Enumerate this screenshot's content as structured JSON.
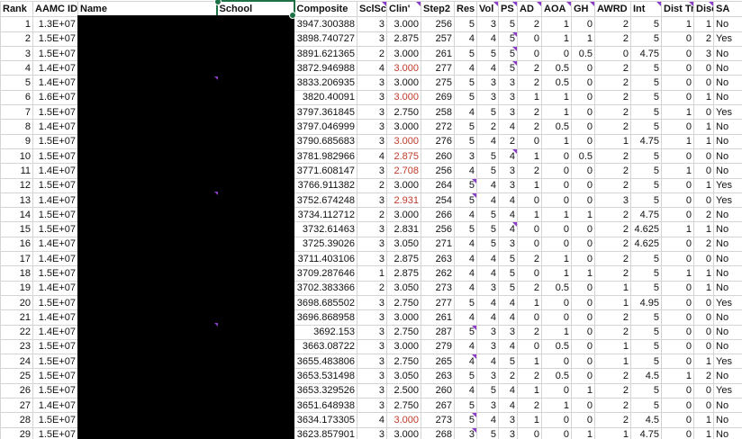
{
  "headers": [
    "Rank",
    "AAMC ID",
    "Name",
    "School",
    "Composite",
    "SclScr",
    "Clin'",
    "Step2",
    "Res",
    "Vol",
    "PS",
    "AD",
    "AOA",
    "GH",
    "AWRD",
    "Int",
    "Dist Tr",
    "Disc",
    "SA"
  ],
  "selected_header": "School",
  "rows": [
    [
      "1",
      "1.3E+07",
      "",
      "",
      "3947.300388",
      "3",
      "3.000",
      "256",
      "5",
      "3",
      "5",
      "2",
      "1",
      "0",
      "2",
      "5",
      "1",
      "1",
      "No"
    ],
    [
      "2",
      "1.5E+07",
      "",
      "",
      "3898.740727",
      "3",
      "2.875",
      "257",
      "4",
      "4",
      "5",
      "0",
      "1",
      "1",
      "2",
      "5",
      "0",
      "2",
      "Yes"
    ],
    [
      "3",
      "1.5E+07",
      "",
      "",
      "3891.621365",
      "2",
      "3.000",
      "261",
      "5",
      "5",
      "5",
      "0",
      "0",
      "0.5",
      "0",
      "4.75",
      "0",
      "3",
      "No"
    ],
    [
      "4",
      "1.4E+07",
      "",
      "",
      "3872.946988",
      "4",
      "3.000",
      "277",
      "4",
      "4",
      "5",
      "2",
      "0.5",
      "0",
      "2",
      "5",
      "0",
      "0",
      "No"
    ],
    [
      "5",
      "1.4E+07",
      "",
      "",
      "3833.206935",
      "3",
      "3.000",
      "275",
      "5",
      "3",
      "3",
      "2",
      "0.5",
      "0",
      "2",
      "5",
      "0",
      "0",
      "No"
    ],
    [
      "6",
      "1.6E+07",
      "",
      "",
      "3820.40091",
      "3",
      "3.000",
      "269",
      "5",
      "3",
      "3",
      "1",
      "1",
      "0",
      "2",
      "5",
      "0",
      "1",
      "No"
    ],
    [
      "7",
      "1.5E+07",
      "",
      "",
      "3797.361845",
      "3",
      "2.750",
      "258",
      "4",
      "5",
      "3",
      "2",
      "1",
      "0",
      "2",
      "5",
      "1",
      "0",
      "Yes"
    ],
    [
      "8",
      "1.4E+07",
      "",
      "",
      "3797.046999",
      "3",
      "3.000",
      "272",
      "5",
      "2",
      "4",
      "2",
      "0.5",
      "0",
      "2",
      "5",
      "0",
      "1",
      "No"
    ],
    [
      "9",
      "1.5E+07",
      "",
      "",
      "3790.685683",
      "3",
      "3.000",
      "276",
      "5",
      "4",
      "2",
      "0",
      "1",
      "0",
      "1",
      "4.75",
      "1",
      "1",
      "No"
    ],
    [
      "10",
      "1.5E+07",
      "",
      "",
      "3781.982966",
      "4",
      "2.875",
      "260",
      "3",
      "5",
      "4",
      "1",
      "0",
      "0.5",
      "2",
      "5",
      "0",
      "0",
      "No"
    ],
    [
      "11",
      "1.4E+07",
      "",
      "",
      "3771.608147",
      "3",
      "2.708",
      "256",
      "4",
      "5",
      "3",
      "2",
      "0",
      "0",
      "2",
      "5",
      "1",
      "0",
      "No"
    ],
    [
      "12",
      "1.5E+07",
      "",
      "",
      "3766.911382",
      "2",
      "3.000",
      "264",
      "5",
      "4",
      "3",
      "1",
      "0",
      "0",
      "2",
      "5",
      "0",
      "1",
      "Yes"
    ],
    [
      "13",
      "1.4E+07",
      "",
      "",
      "3752.674248",
      "3",
      "2.931",
      "254",
      "5",
      "4",
      "4",
      "0",
      "0",
      "0",
      "3",
      "5",
      "0",
      "0",
      "Yes"
    ],
    [
      "14",
      "1.5E+07",
      "",
      "",
      "3734.112712",
      "2",
      "3.000",
      "266",
      "4",
      "5",
      "4",
      "1",
      "1",
      "1",
      "2",
      "4.75",
      "0",
      "2",
      "No"
    ],
    [
      "15",
      "1.5E+07",
      "",
      "",
      "3732.61463",
      "3",
      "2.831",
      "256",
      "5",
      "5",
      "4",
      "0",
      "0",
      "0",
      "2",
      "4.625",
      "1",
      "1",
      "No"
    ],
    [
      "16",
      "1.4E+07",
      "",
      "",
      "3725.39026",
      "3",
      "3.050",
      "271",
      "4",
      "5",
      "3",
      "0",
      "0",
      "0",
      "2",
      "4.625",
      "0",
      "2",
      "No"
    ],
    [
      "17",
      "1.4E+07",
      "",
      "",
      "3711.403106",
      "3",
      "2.875",
      "263",
      "4",
      "4",
      "5",
      "2",
      "1",
      "0",
      "2",
      "5",
      "0",
      "0",
      "No"
    ],
    [
      "18",
      "1.5E+07",
      "",
      "",
      "3709.287646",
      "1",
      "2.875",
      "262",
      "4",
      "4",
      "5",
      "0",
      "1",
      "1",
      "2",
      "5",
      "1",
      "1",
      "No"
    ],
    [
      "19",
      "1.4E+07",
      "",
      "",
      "3702.383366",
      "2",
      "3.050",
      "273",
      "4",
      "3",
      "5",
      "2",
      "0.5",
      "0",
      "1",
      "5",
      "0",
      "1",
      "No"
    ],
    [
      "20",
      "1.5E+07",
      "",
      "",
      "3698.685502",
      "3",
      "2.750",
      "277",
      "5",
      "4",
      "4",
      "1",
      "0",
      "0",
      "1",
      "4.95",
      "0",
      "0",
      "Yes"
    ],
    [
      "21",
      "1.4E+07",
      "",
      "",
      "3696.868958",
      "3",
      "3.000",
      "261",
      "4",
      "4",
      "4",
      "0",
      "0",
      "0",
      "2",
      "5",
      "0",
      "0",
      "No"
    ],
    [
      "22",
      "1.4E+07",
      "",
      "",
      "3692.153",
      "3",
      "2.750",
      "287",
      "5",
      "3",
      "3",
      "2",
      "1",
      "0",
      "2",
      "5",
      "0",
      "0",
      "No"
    ],
    [
      "23",
      "1.5E+07",
      "",
      "",
      "3663.08722",
      "3",
      "3.000",
      "279",
      "4",
      "3",
      "4",
      "0",
      "0.5",
      "0",
      "1",
      "5",
      "0",
      "0",
      "No"
    ],
    [
      "24",
      "1.5E+07",
      "",
      "",
      "3655.483806",
      "3",
      "2.750",
      "265",
      "4",
      "4",
      "5",
      "1",
      "0",
      "0",
      "1",
      "5",
      "0",
      "1",
      "Yes"
    ],
    [
      "25",
      "1.5E+07",
      "",
      "",
      "3653.531498",
      "3",
      "3.050",
      "263",
      "5",
      "3",
      "2",
      "2",
      "0.5",
      "0",
      "2",
      "4.5",
      "1",
      "2",
      "No"
    ],
    [
      "26",
      "1.5E+07",
      "",
      "",
      "3653.329526",
      "3",
      "2.500",
      "260",
      "4",
      "5",
      "4",
      "1",
      "0",
      "1",
      "2",
      "5",
      "0",
      "0",
      "Yes"
    ],
    [
      "27",
      "1.4E+07",
      "",
      "",
      "3651.648938",
      "3",
      "2.750",
      "267",
      "5",
      "3",
      "4",
      "2",
      "1",
      "0",
      "2",
      "5",
      "0",
      "0",
      "No"
    ],
    [
      "28",
      "1.5E+07",
      "",
      "",
      "3634.173305",
      "4",
      "3.000",
      "273",
      "5",
      "4",
      "3",
      "1",
      "0",
      "0",
      "2",
      "4.5",
      "0",
      "1",
      "No"
    ],
    [
      "29",
      "1.5E+07",
      "",
      "",
      "3623.857901",
      "3",
      "3.000",
      "268",
      "3",
      "5",
      "3",
      "0",
      "0",
      "1",
      "1",
      "4.75",
      "0",
      "1",
      "No"
    ]
  ],
  "red_clin_rows": [
    4,
    6,
    9,
    10,
    11,
    13,
    28
  ],
  "colors": {
    "red_value": "#c0392b",
    "selection_green": "#1e7145",
    "comment_flag": "#8a3cc8",
    "redaction": "#000000"
  }
}
